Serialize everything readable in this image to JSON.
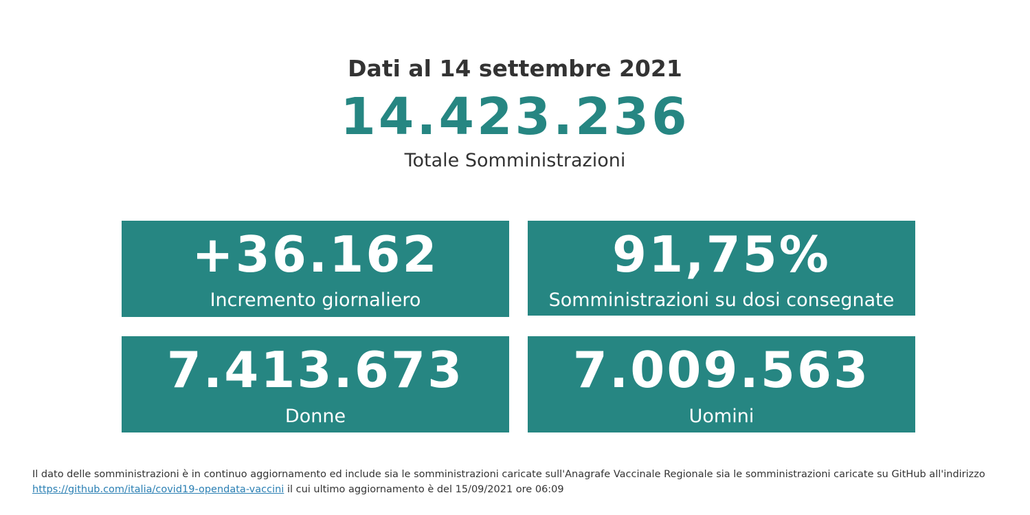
{
  "header": {
    "date_line": "Dati al 14 settembre 2021",
    "total_value": "14.423.236",
    "total_label": "Totale Somministrazioni"
  },
  "cards": {
    "daily": {
      "value": "+36.162",
      "label": "Incremento giornaliero"
    },
    "ratio": {
      "value": "91,75%",
      "label": "Somministrazioni su dosi consegnate"
    },
    "women": {
      "value": "7.413.673",
      "label": "Donne"
    },
    "men": {
      "value": "7.009.563",
      "label": "Uomini"
    }
  },
  "footnote": {
    "text_before": "Il dato delle somministrazioni è in continuo aggiornamento ed include sia le somministrazioni caricate sull'Anagrafe Vaccinale Regionale sia le somministrazioni caricate su GitHub all'indirizzo",
    "link_text": "https://github.com/italia/covid19-opendata-vaccini",
    "text_after": "il cui ultimo aggiornamento è del 15/09/2021 ore 06:09"
  },
  "colors": {
    "accent": "#268682",
    "text": "#333333",
    "link": "#2a7fb3"
  }
}
